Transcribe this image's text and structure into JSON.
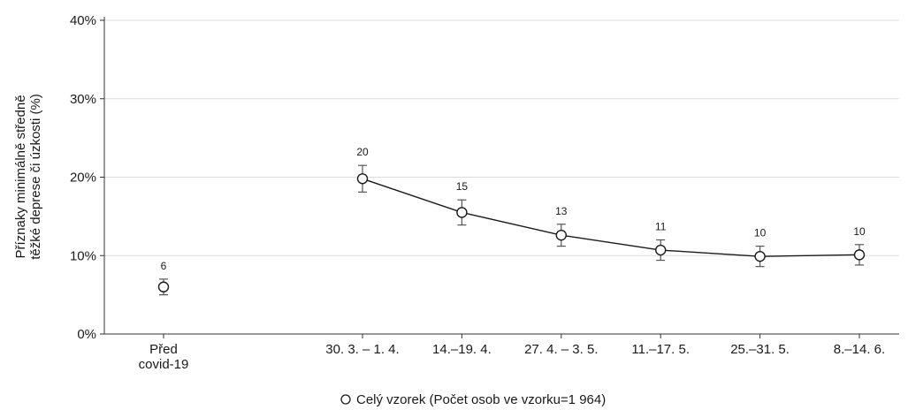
{
  "chart_data": {
    "type": "line",
    "ylabel": [
      "Příznaky minimálně středně",
      "těžké deprese či úzkosti (%)"
    ],
    "ylim": [
      0,
      40
    ],
    "yticks": [
      {
        "value": 0,
        "label": "0%"
      },
      {
        "value": 10,
        "label": "10%"
      },
      {
        "value": 20,
        "label": "20%"
      },
      {
        "value": 30,
        "label": "30%"
      },
      {
        "value": 40,
        "label": "40%"
      }
    ],
    "categories": [
      [
        "Před",
        "covid-19"
      ],
      [
        "30. 3. – 1. 4."
      ],
      [
        "14.–19. 4."
      ],
      [
        "27. 4. – 3. 5."
      ],
      [
        "11.–17. 5."
      ],
      [
        "25.–31. 5."
      ],
      [
        "8.–14. 6."
      ]
    ],
    "series": [
      {
        "name": "Celý vzorek (Počet osob ve vzorku=1 964)",
        "values": [
          6.0,
          19.8,
          15.5,
          12.6,
          10.7,
          9.9,
          10.1
        ],
        "ci_low": [
          5.0,
          18.1,
          13.9,
          11.2,
          9.4,
          8.6,
          8.8
        ],
        "ci_high": [
          7.0,
          21.5,
          17.1,
          14.0,
          12.0,
          11.2,
          11.4
        ],
        "labels": [
          "6",
          "20",
          "15",
          "13",
          "11",
          "10",
          "10"
        ],
        "connected_from_index": 1
      }
    ],
    "grid": "horizontal",
    "legend_position": "bottom"
  }
}
